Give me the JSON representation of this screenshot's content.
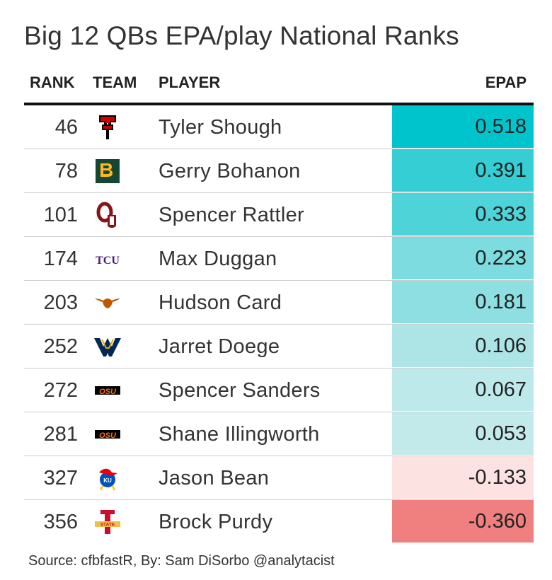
{
  "title": "Big 12 QBs EPA/play National Ranks",
  "columns": {
    "rank": "RANK",
    "team": "TEAM",
    "player": "PLAYER",
    "epap": "EPAP"
  },
  "source": "Source: cfbfastR, By: Sam DiSorbo @analytacist",
  "colors": {
    "positive_max": "#00C4CC",
    "positive_min": "#D9EEEE",
    "negative_min": "#FDE2E2",
    "negative_max": "#F08080"
  },
  "chart_data": {
    "type": "table",
    "title": "Big 12 QBs EPA/play National Ranks",
    "columns": [
      "RANK",
      "TEAM",
      "PLAYER",
      "EPAP"
    ],
    "rows": [
      {
        "rank": "46",
        "team_logo": "texas-tech-logo-icon",
        "player": "Tyler Shough",
        "epap": 0.518,
        "epap_text": "0.518"
      },
      {
        "rank": "78",
        "team_logo": "baylor-logo-icon",
        "player": "Gerry Bohanon",
        "epap": 0.391,
        "epap_text": "0.391"
      },
      {
        "rank": "101",
        "team_logo": "oklahoma-logo-icon",
        "player": "Spencer Rattler",
        "epap": 0.333,
        "epap_text": "0.333"
      },
      {
        "rank": "174",
        "team_logo": "tcu-logo-icon",
        "player": "Max Duggan",
        "epap": 0.223,
        "epap_text": "0.223"
      },
      {
        "rank": "203",
        "team_logo": "texas-logo-icon",
        "player": "Hudson Card",
        "epap": 0.181,
        "epap_text": "0.181"
      },
      {
        "rank": "252",
        "team_logo": "west-virginia-logo-icon",
        "player": "Jarret Doege",
        "epap": 0.106,
        "epap_text": "0.106"
      },
      {
        "rank": "272",
        "team_logo": "oklahoma-state-logo-icon",
        "player": "Spencer Sanders",
        "epap": 0.067,
        "epap_text": "0.067"
      },
      {
        "rank": "281",
        "team_logo": "oklahoma-state-logo-icon",
        "player": "Shane Illingworth",
        "epap": 0.053,
        "epap_text": "0.053"
      },
      {
        "rank": "327",
        "team_logo": "kansas-logo-icon",
        "player": "Jason Bean",
        "epap": -0.133,
        "epap_text": "-0.133"
      },
      {
        "rank": "356",
        "team_logo": "iowa-state-logo-icon",
        "player": "Brock Purdy",
        "epap": -0.36,
        "epap_text": "-0.360"
      }
    ]
  }
}
